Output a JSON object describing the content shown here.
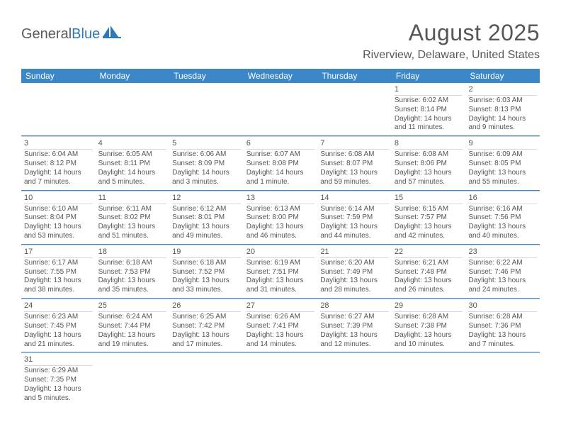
{
  "brand": {
    "part1": "General",
    "part2": "Blue"
  },
  "title": "August 2025",
  "location": "Riverview, Delaware, United States",
  "header_bg": "#3b87c8",
  "accent_line": "#3b87c8",
  "text_color": "#555555",
  "dow": [
    "Sunday",
    "Monday",
    "Tuesday",
    "Wednesday",
    "Thursday",
    "Friday",
    "Saturday"
  ],
  "weeks": [
    [
      null,
      null,
      null,
      null,
      null,
      {
        "n": "1",
        "sr": "Sunrise: 6:02 AM",
        "ss": "Sunset: 8:14 PM",
        "dl1": "Daylight: 14 hours",
        "dl2": "and 11 minutes."
      },
      {
        "n": "2",
        "sr": "Sunrise: 6:03 AM",
        "ss": "Sunset: 8:13 PM",
        "dl1": "Daylight: 14 hours",
        "dl2": "and 9 minutes."
      }
    ],
    [
      {
        "n": "3",
        "sr": "Sunrise: 6:04 AM",
        "ss": "Sunset: 8:12 PM",
        "dl1": "Daylight: 14 hours",
        "dl2": "and 7 minutes."
      },
      {
        "n": "4",
        "sr": "Sunrise: 6:05 AM",
        "ss": "Sunset: 8:11 PM",
        "dl1": "Daylight: 14 hours",
        "dl2": "and 5 minutes."
      },
      {
        "n": "5",
        "sr": "Sunrise: 6:06 AM",
        "ss": "Sunset: 8:09 PM",
        "dl1": "Daylight: 14 hours",
        "dl2": "and 3 minutes."
      },
      {
        "n": "6",
        "sr": "Sunrise: 6:07 AM",
        "ss": "Sunset: 8:08 PM",
        "dl1": "Daylight: 14 hours",
        "dl2": "and 1 minute."
      },
      {
        "n": "7",
        "sr": "Sunrise: 6:08 AM",
        "ss": "Sunset: 8:07 PM",
        "dl1": "Daylight: 13 hours",
        "dl2": "and 59 minutes."
      },
      {
        "n": "8",
        "sr": "Sunrise: 6:08 AM",
        "ss": "Sunset: 8:06 PM",
        "dl1": "Daylight: 13 hours",
        "dl2": "and 57 minutes."
      },
      {
        "n": "9",
        "sr": "Sunrise: 6:09 AM",
        "ss": "Sunset: 8:05 PM",
        "dl1": "Daylight: 13 hours",
        "dl2": "and 55 minutes."
      }
    ],
    [
      {
        "n": "10",
        "sr": "Sunrise: 6:10 AM",
        "ss": "Sunset: 8:04 PM",
        "dl1": "Daylight: 13 hours",
        "dl2": "and 53 minutes."
      },
      {
        "n": "11",
        "sr": "Sunrise: 6:11 AM",
        "ss": "Sunset: 8:02 PM",
        "dl1": "Daylight: 13 hours",
        "dl2": "and 51 minutes."
      },
      {
        "n": "12",
        "sr": "Sunrise: 6:12 AM",
        "ss": "Sunset: 8:01 PM",
        "dl1": "Daylight: 13 hours",
        "dl2": "and 49 minutes."
      },
      {
        "n": "13",
        "sr": "Sunrise: 6:13 AM",
        "ss": "Sunset: 8:00 PM",
        "dl1": "Daylight: 13 hours",
        "dl2": "and 46 minutes."
      },
      {
        "n": "14",
        "sr": "Sunrise: 6:14 AM",
        "ss": "Sunset: 7:59 PM",
        "dl1": "Daylight: 13 hours",
        "dl2": "and 44 minutes."
      },
      {
        "n": "15",
        "sr": "Sunrise: 6:15 AM",
        "ss": "Sunset: 7:57 PM",
        "dl1": "Daylight: 13 hours",
        "dl2": "and 42 minutes."
      },
      {
        "n": "16",
        "sr": "Sunrise: 6:16 AM",
        "ss": "Sunset: 7:56 PM",
        "dl1": "Daylight: 13 hours",
        "dl2": "and 40 minutes."
      }
    ],
    [
      {
        "n": "17",
        "sr": "Sunrise: 6:17 AM",
        "ss": "Sunset: 7:55 PM",
        "dl1": "Daylight: 13 hours",
        "dl2": "and 38 minutes."
      },
      {
        "n": "18",
        "sr": "Sunrise: 6:18 AM",
        "ss": "Sunset: 7:53 PM",
        "dl1": "Daylight: 13 hours",
        "dl2": "and 35 minutes."
      },
      {
        "n": "19",
        "sr": "Sunrise: 6:18 AM",
        "ss": "Sunset: 7:52 PM",
        "dl1": "Daylight: 13 hours",
        "dl2": "and 33 minutes."
      },
      {
        "n": "20",
        "sr": "Sunrise: 6:19 AM",
        "ss": "Sunset: 7:51 PM",
        "dl1": "Daylight: 13 hours",
        "dl2": "and 31 minutes."
      },
      {
        "n": "21",
        "sr": "Sunrise: 6:20 AM",
        "ss": "Sunset: 7:49 PM",
        "dl1": "Daylight: 13 hours",
        "dl2": "and 28 minutes."
      },
      {
        "n": "22",
        "sr": "Sunrise: 6:21 AM",
        "ss": "Sunset: 7:48 PM",
        "dl1": "Daylight: 13 hours",
        "dl2": "and 26 minutes."
      },
      {
        "n": "23",
        "sr": "Sunrise: 6:22 AM",
        "ss": "Sunset: 7:46 PM",
        "dl1": "Daylight: 13 hours",
        "dl2": "and 24 minutes."
      }
    ],
    [
      {
        "n": "24",
        "sr": "Sunrise: 6:23 AM",
        "ss": "Sunset: 7:45 PM",
        "dl1": "Daylight: 13 hours",
        "dl2": "and 21 minutes."
      },
      {
        "n": "25",
        "sr": "Sunrise: 6:24 AM",
        "ss": "Sunset: 7:44 PM",
        "dl1": "Daylight: 13 hours",
        "dl2": "and 19 minutes."
      },
      {
        "n": "26",
        "sr": "Sunrise: 6:25 AM",
        "ss": "Sunset: 7:42 PM",
        "dl1": "Daylight: 13 hours",
        "dl2": "and 17 minutes."
      },
      {
        "n": "27",
        "sr": "Sunrise: 6:26 AM",
        "ss": "Sunset: 7:41 PM",
        "dl1": "Daylight: 13 hours",
        "dl2": "and 14 minutes."
      },
      {
        "n": "28",
        "sr": "Sunrise: 6:27 AM",
        "ss": "Sunset: 7:39 PM",
        "dl1": "Daylight: 13 hours",
        "dl2": "and 12 minutes."
      },
      {
        "n": "29",
        "sr": "Sunrise: 6:28 AM",
        "ss": "Sunset: 7:38 PM",
        "dl1": "Daylight: 13 hours",
        "dl2": "and 10 minutes."
      },
      {
        "n": "30",
        "sr": "Sunrise: 6:28 AM",
        "ss": "Sunset: 7:36 PM",
        "dl1": "Daylight: 13 hours",
        "dl2": "and 7 minutes."
      }
    ],
    [
      {
        "n": "31",
        "sr": "Sunrise: 6:29 AM",
        "ss": "Sunset: 7:35 PM",
        "dl1": "Daylight: 13 hours",
        "dl2": "and 5 minutes."
      },
      null,
      null,
      null,
      null,
      null,
      null
    ]
  ]
}
